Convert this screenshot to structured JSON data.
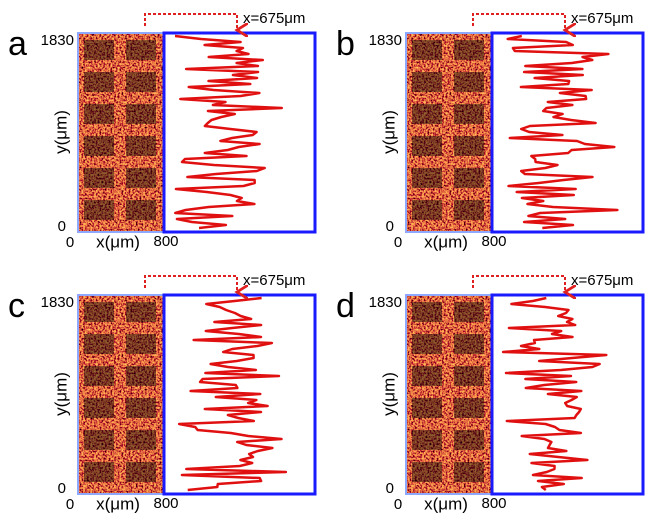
{
  "panels": [
    {
      "label": "a",
      "y_max": 1830,
      "y_min": 0,
      "y_label": "y(μm)",
      "x_min": 0,
      "x_label": "x(μm)",
      "x_max": 800,
      "marker": "x=675μm"
    },
    {
      "label": "b",
      "y_max": 1830,
      "y_min": 0,
      "y_label": "y(μm)",
      "x_min": 0,
      "x_label": "x(μm)",
      "x_max": 800,
      "marker": "x=675μm"
    },
    {
      "label": "c",
      "y_max": 1830,
      "y_min": 0,
      "y_label": "y(μm)",
      "x_min": 0,
      "x_label": "x(μm)",
      "x_max": 800,
      "marker": "x=675μm"
    },
    {
      "label": "d",
      "y_max": 1830,
      "y_min": 0,
      "y_label": "y(μm)",
      "x_min": 0,
      "x_label": "x(μm)",
      "x_max": 800,
      "marker": "x=675μm"
    }
  ]
}
